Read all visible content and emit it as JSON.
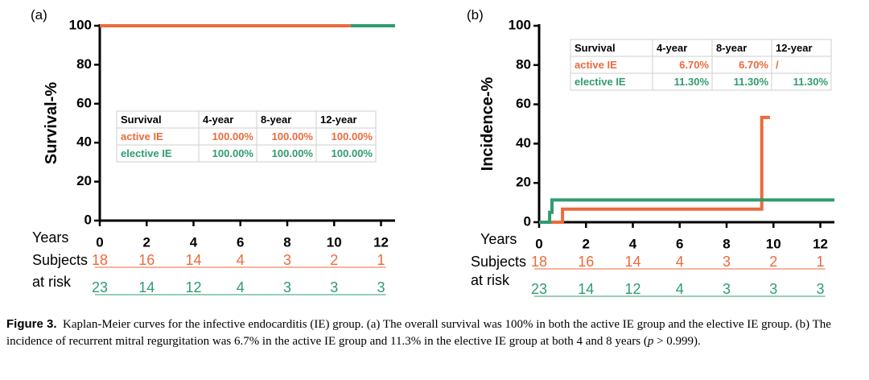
{
  "colors": {
    "active": "#ec6a3c",
    "elective": "#2f9c6e",
    "axis": "#000000"
  },
  "chart_data": [
    {
      "type": "line",
      "step": true,
      "panel_label": "(a)",
      "ylabel": "Survival-%",
      "xlabel": "Years",
      "xlim": [
        0,
        12.6
      ],
      "ylim": [
        0,
        100
      ],
      "xticks": [
        0,
        2,
        4,
        6,
        8,
        10,
        12
      ],
      "yticks": [
        0,
        20,
        40,
        60,
        80,
        100
      ],
      "series": [
        {
          "name": "active IE",
          "x": [
            0,
            10.7
          ],
          "y": [
            100,
            100
          ]
        },
        {
          "name": "elective IE",
          "x": [
            10.7,
            12.6
          ],
          "y": [
            100,
            100
          ]
        }
      ],
      "table": {
        "header": [
          "Survival",
          "4-year",
          "8-year",
          "12-year"
        ],
        "rows": [
          {
            "name": "active IE",
            "values": [
              "100.00%",
              "100.00%",
              "100.00%"
            ]
          },
          {
            "name": "elective IE",
            "values": [
              "100.00%",
              "100.00%",
              "100.00%"
            ]
          }
        ]
      },
      "risk_label_1": "Subjects",
      "risk_label_2": "at risk",
      "risk": {
        "active": [
          "18",
          "16",
          "14",
          "4",
          "3",
          "2",
          "1"
        ],
        "elective": [
          "23",
          "14",
          "12",
          "4",
          "3",
          "3",
          "3"
        ]
      }
    },
    {
      "type": "line",
      "step": true,
      "panel_label": "(b)",
      "ylabel": "Incidence-%",
      "xlabel": "Years",
      "xlim": [
        0,
        12.6
      ],
      "ylim": [
        0,
        100
      ],
      "xticks": [
        0,
        2,
        4,
        6,
        8,
        10,
        12
      ],
      "yticks": [
        0,
        20,
        40,
        60,
        80,
        100
      ],
      "series": [
        {
          "name": "active IE",
          "x": [
            0,
            1.0,
            1.0,
            9.5,
            9.5,
            9.85
          ],
          "y": [
            0,
            0,
            6.7,
            6.7,
            53.3,
            53.3
          ]
        },
        {
          "name": "elective IE",
          "x": [
            0,
            0.45,
            0.45,
            0.55,
            0.55,
            12.6
          ],
          "y": [
            0,
            0,
            5,
            5,
            11.3,
            11.3
          ]
        }
      ],
      "table": {
        "header": [
          "Survival",
          "4-year",
          "8-year",
          "12-year"
        ],
        "rows": [
          {
            "name": "active IE",
            "values": [
              "6.70%",
              "6.70%",
              "/"
            ]
          },
          {
            "name": "elective IE",
            "values": [
              "11.30%",
              "11.30%",
              "11.30%"
            ]
          }
        ]
      },
      "risk_label_1": "Subjects",
      "risk_label_2": "at risk",
      "risk": {
        "active": [
          "18",
          "16",
          "14",
          "4",
          "3",
          "2",
          "1"
        ],
        "elective": [
          "23",
          "14",
          "12",
          "4",
          "3",
          "3",
          "3"
        ]
      }
    }
  ],
  "caption": {
    "title": "Figure 3.",
    "text": "Kaplan-Meier curves for the infective endocarditis (IE) group. (a) The overall survival was 100% in both the active IE group and the elective IE group. (b) The incidence of recurrent mitral regurgitation was 6.7% in the active IE group and 11.3% in the elective IE group at both 4 and 8 years (",
    "p_symbol": "p",
    "p_rest": " > 0.999)."
  }
}
